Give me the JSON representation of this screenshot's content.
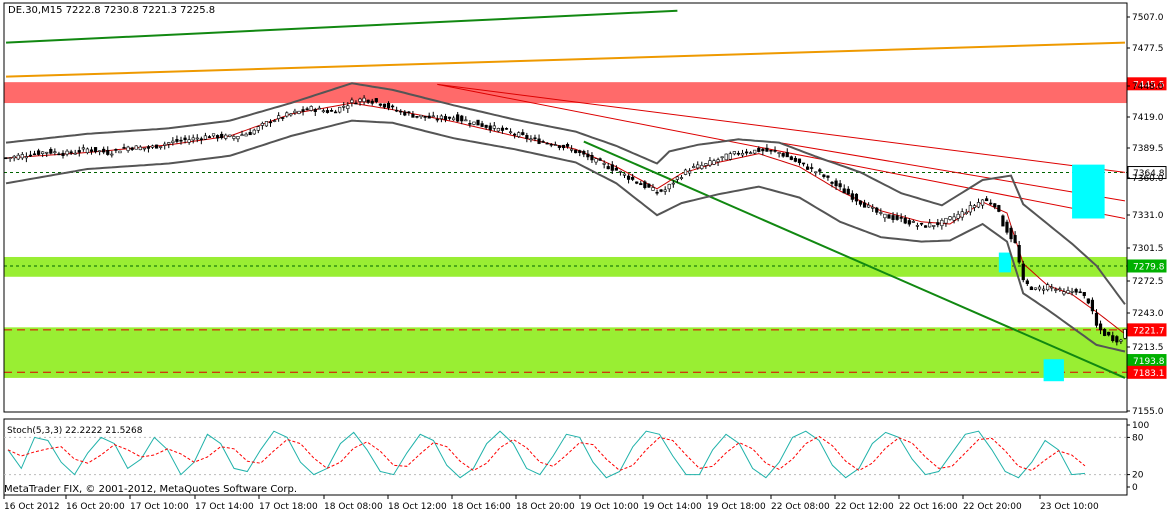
{
  "chart_data": {
    "type": "candlestick",
    "header": "DE.30,M15  7222.8 7230.8 7221.3 7225.8",
    "price_ticks": [
      "7507.0",
      "7477.5",
      "7448.0",
      "7419.0",
      "7389.5",
      "7360.0",
      "7331.0",
      "7301.5",
      "7272.5",
      "7243.0",
      "7213.5",
      "7155.0"
    ],
    "price_markers": [
      {
        "label": "7445.5",
        "price": 7445.5,
        "bg": "#ff0000"
      },
      {
        "label": "7364.8",
        "price": 7364.8,
        "bg": "#ffffff"
      },
      {
        "label": "7279.8",
        "price": 7279.8,
        "bg": "#00b000"
      },
      {
        "label": "7221.7",
        "price": 7221.7,
        "bg": "#ff0000"
      },
      {
        "label": "7193.8",
        "price": 7193.8,
        "bg": "#00b000"
      },
      {
        "label": "7183.1",
        "price": 7183.1,
        "bg": "#ff0000"
      }
    ],
    "time_labels": [
      "16 Oct 2012",
      "16 Oct 20:00",
      "17 Oct 10:00",
      "17 Oct 14:00",
      "17 Oct 18:00",
      "18 Oct 08:00",
      "18 Oct 12:00",
      "18 Oct 16:00",
      "18 Oct 20:00",
      "19 Oct 10:00",
      "19 Oct 14:00",
      "19 Oct 18:00",
      "22 Oct 08:00",
      "22 Oct 12:00",
      "22 Oct 16:00",
      "22 Oct 20:00",
      "23 Oct 10:00"
    ],
    "zones": [
      {
        "from": 7428,
        "to": 7447,
        "color": "#ff6a6a"
      },
      {
        "from": 7270,
        "to": 7288,
        "color": "#99ee33"
      },
      {
        "from": 7178,
        "to": 7224,
        "color": "#99ee33"
      }
    ],
    "dashed_levels": [
      {
        "price": 7364.8,
        "color": "#006400"
      },
      {
        "price": 7279.8,
        "color": "#006400"
      },
      {
        "price": 7221.7,
        "color": "#dd0000"
      },
      {
        "price": 7183.1,
        "color": "#dd0000"
      }
    ],
    "close_path": [
      [
        0,
        7378
      ],
      [
        5,
        7381
      ],
      [
        10,
        7384
      ],
      [
        15,
        7382
      ],
      [
        20,
        7386
      ],
      [
        25,
        7383
      ],
      [
        30,
        7388
      ],
      [
        35,
        7387
      ],
      [
        40,
        7392
      ],
      [
        45,
        7395
      ],
      [
        50,
        7398
      ],
      [
        55,
        7397
      ],
      [
        60,
        7401
      ],
      [
        65,
        7412
      ],
      [
        70,
        7418
      ],
      [
        75,
        7423
      ],
      [
        80,
        7420
      ],
      [
        85,
        7429
      ],
      [
        88,
        7432
      ],
      [
        92,
        7428
      ],
      [
        96,
        7421
      ],
      [
        100,
        7417
      ],
      [
        105,
        7414
      ],
      [
        110,
        7415
      ],
      [
        115,
        7410
      ],
      [
        120,
        7405
      ],
      [
        125,
        7400
      ],
      [
        130,
        7394
      ],
      [
        135,
        7391
      ],
      [
        140,
        7384
      ],
      [
        145,
        7375
      ],
      [
        150,
        7367
      ],
      [
        155,
        7356
      ],
      [
        160,
        7347
      ],
      [
        162,
        7349
      ],
      [
        165,
        7360
      ],
      [
        168,
        7368
      ],
      [
        172,
        7372
      ],
      [
        176,
        7378
      ],
      [
        180,
        7383
      ],
      [
        185,
        7385
      ],
      [
        190,
        7383
      ],
      [
        195,
        7373
      ],
      [
        200,
        7364
      ],
      [
        205,
        7350
      ],
      [
        210,
        7338
      ],
      [
        215,
        7326
      ],
      [
        220,
        7322
      ],
      [
        225,
        7316
      ],
      [
        230,
        7319
      ],
      [
        235,
        7328
      ],
      [
        240,
        7340
      ],
      [
        243,
        7336
      ],
      [
        245,
        7318
      ],
      [
        248,
        7300
      ],
      [
        250,
        7265
      ],
      [
        253,
        7258
      ],
      [
        256,
        7262
      ],
      [
        260,
        7255
      ],
      [
        263,
        7258
      ],
      [
        266,
        7248
      ],
      [
        268,
        7225
      ],
      [
        270,
        7218
      ],
      [
        272,
        7214
      ],
      [
        274,
        7212
      ],
      [
        275,
        7223
      ]
    ],
    "bollinger_upper": [
      [
        0,
        7392
      ],
      [
        20,
        7400
      ],
      [
        40,
        7405
      ],
      [
        55,
        7412
      ],
      [
        70,
        7428
      ],
      [
        85,
        7446
      ],
      [
        95,
        7440
      ],
      [
        110,
        7426
      ],
      [
        125,
        7413
      ],
      [
        140,
        7402
      ],
      [
        150,
        7389
      ],
      [
        160,
        7373
      ],
      [
        163,
        7384
      ],
      [
        170,
        7390
      ],
      [
        180,
        7395
      ],
      [
        190,
        7392
      ],
      [
        200,
        7378
      ],
      [
        210,
        7365
      ],
      [
        220,
        7346
      ],
      [
        230,
        7335
      ],
      [
        240,
        7358
      ],
      [
        247,
        7362
      ],
      [
        250,
        7336
      ],
      [
        256,
        7318
      ],
      [
        262,
        7300
      ],
      [
        268,
        7280
      ],
      [
        275,
        7245
      ]
    ],
    "bollinger_lower": [
      [
        0,
        7355
      ],
      [
        20,
        7368
      ],
      [
        40,
        7373
      ],
      [
        55,
        7380
      ],
      [
        70,
        7398
      ],
      [
        85,
        7412
      ],
      [
        95,
        7410
      ],
      [
        110,
        7396
      ],
      [
        125,
        7386
      ],
      [
        140,
        7374
      ],
      [
        150,
        7355
      ],
      [
        160,
        7326
      ],
      [
        166,
        7337
      ],
      [
        175,
        7345
      ],
      [
        185,
        7352
      ],
      [
        195,
        7342
      ],
      [
        205,
        7320
      ],
      [
        215,
        7306
      ],
      [
        225,
        7302
      ],
      [
        232,
        7303
      ],
      [
        240,
        7318
      ],
      [
        246,
        7302
      ],
      [
        250,
        7255
      ],
      [
        256,
        7240
      ],
      [
        262,
        7224
      ],
      [
        268,
        7208
      ],
      [
        275,
        7202
      ]
    ],
    "ma_red": [
      [
        0,
        7378
      ],
      [
        20,
        7383
      ],
      [
        40,
        7390
      ],
      [
        55,
        7398
      ],
      [
        70,
        7418
      ],
      [
        85,
        7428
      ],
      [
        95,
        7422
      ],
      [
        110,
        7411
      ],
      [
        125,
        7398
      ],
      [
        140,
        7386
      ],
      [
        150,
        7370
      ],
      [
        160,
        7350
      ],
      [
        166,
        7364
      ],
      [
        175,
        7374
      ],
      [
        185,
        7382
      ],
      [
        195,
        7370
      ],
      [
        205,
        7348
      ],
      [
        215,
        7330
      ],
      [
        225,
        7320
      ],
      [
        232,
        7318
      ],
      [
        240,
        7338
      ],
      [
        246,
        7328
      ],
      [
        250,
        7282
      ],
      [
        256,
        7262
      ],
      [
        262,
        7254
      ],
      [
        268,
        7238
      ],
      [
        275,
        7218
      ]
    ],
    "trendlines": [
      {
        "from": [
          0,
          7483
        ],
        "to": [
          165,
          7512
        ],
        "color": "#118811",
        "width": 2
      },
      {
        "from": [
          0,
          7452
        ],
        "to": [
          275,
          7483
        ],
        "color": "#ee9900",
        "width": 2
      },
      {
        "from": [
          142,
          7393
        ],
        "to": [
          275,
          7178
        ],
        "color": "#118811",
        "width": 2
      },
      {
        "from": [
          106,
          7445
        ],
        "to": [
          275,
          7365
        ],
        "color": "#dd0000",
        "width": 1
      },
      {
        "from": [
          106,
          7445
        ],
        "to": [
          275,
          7323
        ],
        "color": "#dd0000",
        "width": 1
      },
      {
        "from": [
          190,
          7392
        ],
        "to": [
          275,
          7339
        ],
        "color": "#dd0000",
        "width": 1
      }
    ],
    "boxes": [
      {
        "x_from": 262,
        "x_to": 270,
        "price_from": 7323,
        "price_to": 7372,
        "color": "#00ffff"
      },
      {
        "x_from": 244,
        "x_to": 247,
        "price_from": 7274,
        "price_to": 7292,
        "color": "#00ffff"
      },
      {
        "x_from": 255,
        "x_to": 260,
        "price_from": 7175,
        "price_to": 7195,
        "color": "#00ffff"
      }
    ],
    "stoch": {
      "label": "Stoch(5,3,3) 22.2222 21.5268",
      "ticks": [
        "100",
        "80",
        "20",
        "0"
      ],
      "main_color": "#20b2aa",
      "signal_color": "#ff0000",
      "values": [
        60,
        30,
        80,
        75,
        40,
        20,
        55,
        80,
        70,
        30,
        45,
        80,
        60,
        20,
        40,
        85,
        70,
        30,
        25,
        60,
        90,
        80,
        40,
        20,
        30,
        70,
        88,
        60,
        25,
        20,
        55,
        85,
        75,
        35,
        15,
        30,
        70,
        90,
        70,
        30,
        20,
        50,
        85,
        80,
        40,
        15,
        25,
        65,
        90,
        85,
        50,
        20,
        20,
        60,
        85,
        70,
        30,
        15,
        40,
        80,
        90,
        75,
        35,
        15,
        30,
        70,
        88,
        80,
        45,
        20,
        25,
        55,
        85,
        90,
        60,
        25,
        15,
        40,
        75,
        60,
        20,
        22
      ]
    },
    "copyright": "MetaTrader FIX, © 2001-2012, MetaQuotes Software Corp."
  }
}
